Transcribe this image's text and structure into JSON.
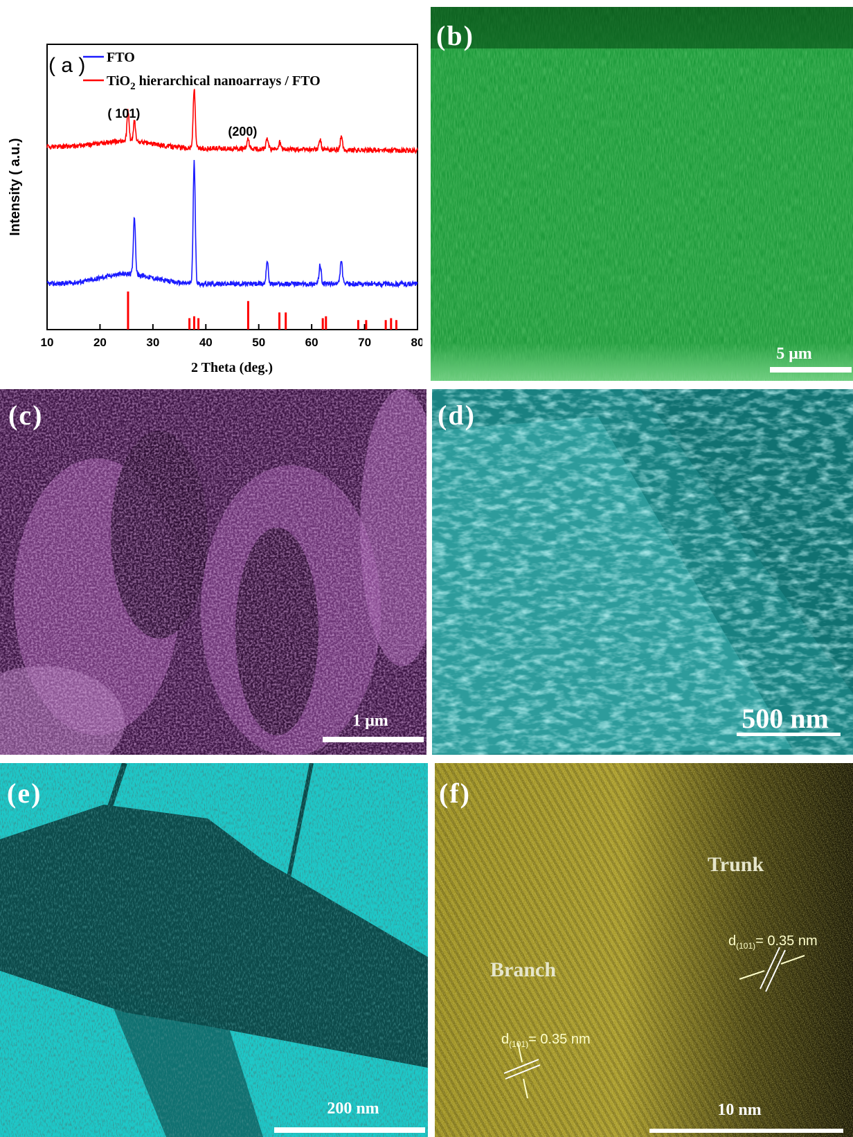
{
  "figure": {
    "panels": {
      "a": {
        "label": "( a )"
      },
      "b": {
        "label": "(b)",
        "scale": "5 μm",
        "color": "#2fb84a"
      },
      "c": {
        "label": "(c)",
        "scale": "1 μm",
        "color": "#7a3a82"
      },
      "d": {
        "label": "(d)",
        "scale": "500 nm",
        "color": "#1f8f8f"
      },
      "e": {
        "label": "(e)",
        "scale": "200 nm",
        "color": "#16c3c3"
      },
      "f": {
        "label": "(f)",
        "scale": "10 nm",
        "color": "#b8a826",
        "annotations": {
          "trunk": "Trunk",
          "branch": "Branch",
          "d1_prefix": "d",
          "d1_sub": "(101)",
          "d1_value": "= 0.35 nm",
          "d2_prefix": "d",
          "d2_sub": "(101)",
          "d2_value": "= 0.35 nm"
        }
      }
    }
  },
  "chart_data": {
    "type": "line",
    "xlabel": "2 Theta (deg.)",
    "ylabel": "Intensity ( a.u.)",
    "xlim": [
      10,
      80
    ],
    "xticks": [
      "10",
      "20",
      "30",
      "40",
      "50",
      "60",
      "70",
      "80"
    ],
    "legend_position": "top-left",
    "series": [
      {
        "name": "FTO",
        "color": "#1a1aff",
        "baseline": 0.0,
        "peaks": [
          [
            26.5,
            0.42
          ],
          [
            37.8,
            0.88
          ],
          [
            51.6,
            0.17
          ],
          [
            61.6,
            0.14
          ],
          [
            65.6,
            0.17
          ]
        ]
      },
      {
        "name": "TiO2 hierarchical nanoarrays / FTO",
        "name_main": "TiO",
        "name_sub": "2",
        "name_rest": " hierarchical nanoarrays / FTO",
        "color": "#ff0000",
        "baseline": 1.0,
        "peaks": [
          [
            25.3,
            0.22
          ],
          [
            26.5,
            0.15
          ],
          [
            37.8,
            0.43
          ],
          [
            48.0,
            0.07
          ],
          [
            51.6,
            0.08
          ],
          [
            54.0,
            0.05
          ],
          [
            61.6,
            0.07
          ],
          [
            65.6,
            0.1
          ]
        ]
      }
    ],
    "reference_lines": [
      25.3,
      36.9,
      37.8,
      38.6,
      48.0,
      53.9,
      55.1,
      62.1,
      62.7,
      68.8,
      70.3,
      74.0,
      75.0,
      76.0
    ],
    "reference_heights": [
      1.0,
      0.3,
      0.35,
      0.3,
      0.75,
      0.45,
      0.45,
      0.3,
      0.35,
      0.25,
      0.25,
      0.25,
      0.3,
      0.25
    ],
    "annotations": [
      {
        "text": "( 101)",
        "x": 25.3
      },
      {
        "text": "(200)",
        "x": 48.0
      }
    ]
  }
}
